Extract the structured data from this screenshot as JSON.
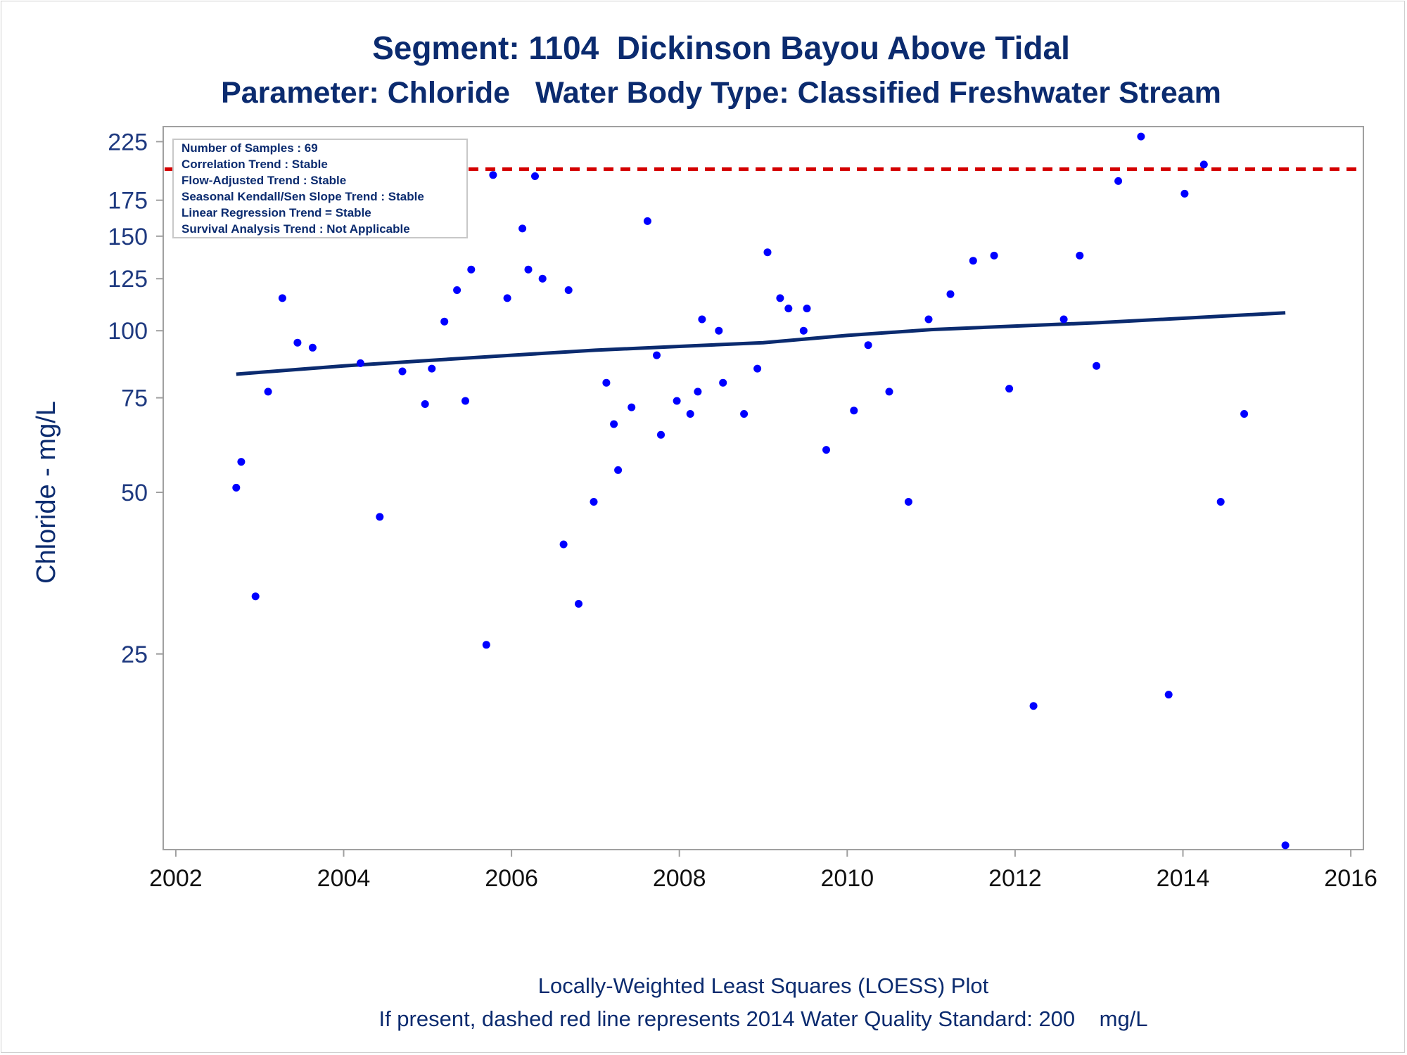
{
  "colors": {
    "title": "#0b2b6f",
    "points": "#0000ff",
    "trend_line": "#0b2b6f",
    "standard_line": "#d40000",
    "axis": "#a0a0a0"
  },
  "chart_data": {
    "type": "scatter",
    "title": "Segment: 1104  Dickinson Bayou Above Tidal",
    "subtitle": "Parameter: Chloride   Water Body Type: Classified Freshwater Stream",
    "xlabel": "",
    "ylabel": "Chloride - mg/L",
    "y_scale": "log",
    "xlim": [
      2001.85,
      2016.15
    ],
    "ylim": [
      10.8,
      240
    ],
    "grid": false,
    "x_ticks": [
      "2002",
      "2004",
      "2006",
      "2008",
      "2010",
      "2012",
      "2014",
      "2016"
    ],
    "y_ticks": [
      "25",
      "50",
      "75",
      "100",
      "125",
      "150",
      "175",
      "225"
    ],
    "legend_placement": "top-left",
    "annotations": [
      "Number of Samples : 69",
      "Correlation Trend : Stable",
      "Flow-Adjusted Trend : Stable",
      "Seasonal Kendall/Sen Slope Trend : Stable",
      "Linear Regression Trend = Stable",
      "Survival Analysis Trend : Not Applicable"
    ],
    "reference_line": {
      "y": 200,
      "style": "dashed",
      "color": "#d40000"
    },
    "footnotes": [
      "Locally-Weighted Least Squares (LOESS) Plot",
      "If present, dashed red line represents 2014 Water Quality Standard: 200    mg/L"
    ],
    "series": [
      {
        "type": "scatter",
        "x": [
          2002.72,
          2002.78,
          2002.95,
          2003.1,
          2003.27,
          2003.45,
          2003.63,
          2004.2,
          2004.43,
          2004.7,
          2004.97,
          2005.05,
          2005.2,
          2005.35,
          2005.45,
          2005.52,
          2005.7,
          2005.78,
          2005.95,
          2006.13,
          2006.2,
          2006.28,
          2006.37,
          2006.62,
          2006.68,
          2006.8,
          2006.98,
          2007.13,
          2007.22,
          2007.27,
          2007.43,
          2007.62,
          2007.73,
          2007.78,
          2007.97,
          2008.13,
          2008.22,
          2008.27,
          2008.47,
          2008.52,
          2008.77,
          2008.93,
          2009.05,
          2009.2,
          2009.3,
          2009.48,
          2009.52,
          2009.75,
          2010.08,
          2010.25,
          2010.5,
          2010.73,
          2010.97,
          2011.23,
          2011.5,
          2011.75,
          2011.93,
          2012.22,
          2012.58,
          2012.77,
          2012.97,
          2013.23,
          2013.5,
          2013.83,
          2014.02,
          2014.25,
          2014.45,
          2014.73,
          2015.22
        ],
        "values": [
          51,
          57,
          32,
          77,
          115,
          95,
          93,
          87,
          45,
          84,
          73,
          85,
          104,
          119,
          74,
          130,
          26,
          195,
          115,
          155,
          130,
          194,
          125,
          40,
          119,
          31,
          48,
          80,
          67,
          55,
          72,
          160,
          90,
          64,
          74,
          70,
          77,
          105,
          100,
          80,
          70,
          85,
          140,
          115,
          110,
          100,
          110,
          60,
          71,
          94,
          77,
          48,
          105,
          117,
          135,
          138,
          78,
          20,
          105,
          138,
          86,
          190,
          230,
          21,
          180,
          204,
          48,
          70,
          11
        ]
      },
      {
        "type": "line",
        "x": [
          2002.72,
          2004.0,
          2005.0,
          2006.0,
          2007.0,
          2008.0,
          2009.0,
          2010.0,
          2011.0,
          2012.0,
          2013.0,
          2014.0,
          2015.22
        ],
        "values": [
          83,
          86,
          88,
          90,
          92,
          93.5,
          95,
          98,
          100.5,
          102,
          103.5,
          105.5,
          108
        ]
      }
    ]
  }
}
